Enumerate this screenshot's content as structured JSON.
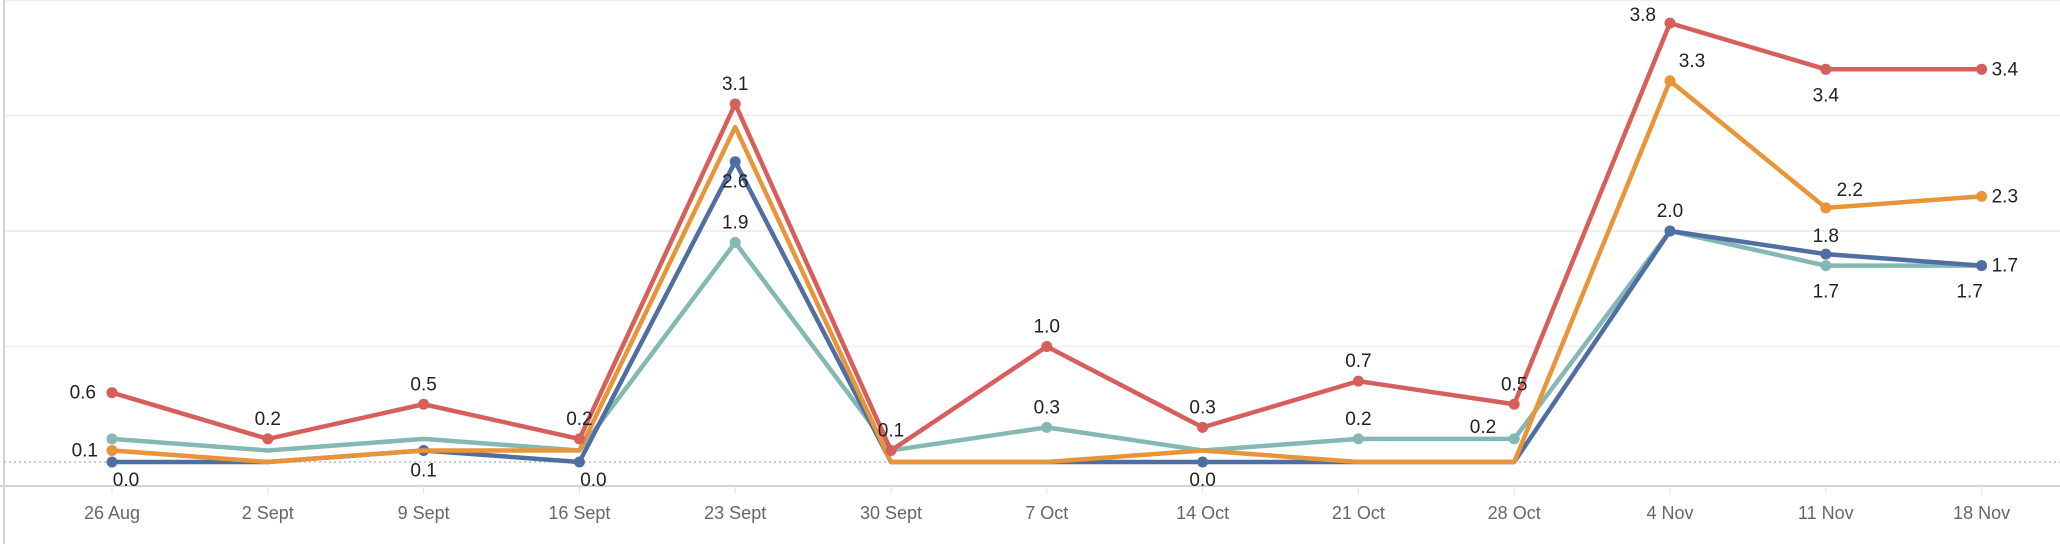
{
  "chart_data": {
    "type": "line",
    "title": "",
    "xlabel": "",
    "ylabel": "",
    "ylim": [
      0,
      4
    ],
    "grid": true,
    "categories": [
      "26 Aug",
      "2 Sept",
      "9 Sept",
      "16 Sept",
      "23 Sept",
      "30 Sept",
      "7 Oct",
      "14 Oct",
      "21 Oct",
      "28 Oct",
      "4 Nov",
      "11 Nov",
      "18 Nov"
    ],
    "series": [
      {
        "name": "red",
        "color": "#d65f5c",
        "values": [
          0.6,
          0.2,
          0.5,
          0.2,
          3.1,
          0.1,
          1.0,
          0.3,
          0.7,
          0.5,
          3.8,
          3.4,
          3.4
        ],
        "labels": [
          "0.6",
          "0.2",
          "0.5",
          "0.2",
          "3.1",
          "0.1",
          "1.0",
          "0.3",
          "0.7",
          "0.5",
          "3.8",
          "3.4",
          "3.4"
        ]
      },
      {
        "name": "orange",
        "color": "#e8953a",
        "values": [
          0.1,
          0.0,
          0.1,
          0.1,
          2.9,
          0.0,
          0.0,
          0.1,
          0.0,
          0.0,
          3.3,
          2.2,
          2.3
        ],
        "labels": [
          "0.1",
          null,
          null,
          null,
          null,
          null,
          null,
          null,
          null,
          null,
          "3.3",
          "2.2",
          "2.3"
        ]
      },
      {
        "name": "blue",
        "color": "#4f6fa3",
        "values": [
          0.0,
          0.0,
          0.1,
          0.0,
          2.6,
          0.0,
          0.0,
          0.0,
          0.0,
          0.0,
          2.0,
          1.8,
          1.7
        ],
        "labels": [
          "0.0",
          null,
          "0.1",
          "0.0",
          "2.6",
          null,
          null,
          "0.0",
          null,
          null,
          null,
          "1.8",
          "1.7"
        ]
      },
      {
        "name": "teal",
        "color": "#83b8b3",
        "values": [
          0.2,
          0.1,
          0.2,
          0.1,
          1.9,
          0.1,
          0.3,
          0.1,
          0.2,
          0.2,
          2.0,
          1.7,
          1.7
        ],
        "labels": [
          null,
          null,
          null,
          null,
          "1.9",
          null,
          "0.3",
          null,
          "0.2",
          "0.2",
          "2.0",
          "1.7",
          "1.7"
        ]
      }
    ]
  }
}
